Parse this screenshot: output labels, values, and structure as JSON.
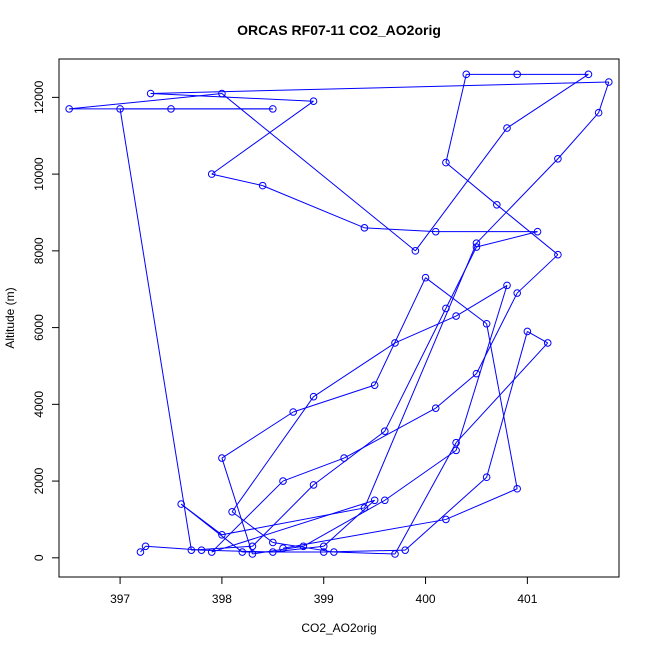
{
  "chart_data": {
    "type": "line",
    "title": "ORCAS RF07-11 CO2_AO2orig",
    "xlabel": "CO2_AO2orig",
    "ylabel": "Altitude (m)",
    "xlim": [
      396.4,
      401.9
    ],
    "ylim": [
      -500,
      13000
    ],
    "x_ticks": [
      "397",
      "398",
      "399",
      "400",
      "401"
    ],
    "y_ticks": [
      "0",
      "2000",
      "4000",
      "6000",
      "8000",
      "10000",
      "12000"
    ],
    "grid": false,
    "legend": "none",
    "series_color": "#0000ff",
    "marker": "open-circle",
    "series": [
      {
        "points": [
          [
            397.2,
            150
          ],
          [
            397.25,
            300
          ],
          [
            397.8,
            200
          ],
          [
            398.5,
            150
          ],
          [
            399.0,
            300
          ],
          [
            399.5,
            1500
          ],
          [
            397.9,
            150
          ],
          [
            398.6,
            2000
          ],
          [
            399.2,
            2600
          ],
          [
            400.1,
            3900
          ],
          [
            400.5,
            4800
          ],
          [
            400.9,
            6900
          ],
          [
            401.3,
            7900
          ],
          [
            400.7,
            9200
          ],
          [
            400.2,
            10300
          ],
          [
            400.4,
            12600
          ],
          [
            400.9,
            12600
          ],
          [
            401.6,
            12600
          ],
          [
            400.8,
            11200
          ],
          [
            399.9,
            8000
          ],
          [
            398.0,
            12100
          ],
          [
            396.5,
            11700
          ],
          [
            397.5,
            11700
          ],
          [
            398.5,
            11700
          ],
          [
            397.0,
            11700
          ],
          [
            397.7,
            200
          ],
          [
            398.3,
            300
          ],
          [
            398.9,
            1900
          ],
          [
            399.6,
            3300
          ],
          [
            400.2,
            6500
          ],
          [
            400.5,
            8100
          ],
          [
            401.1,
            8500
          ],
          [
            400.1,
            8500
          ],
          [
            399.4,
            8600
          ],
          [
            398.4,
            9700
          ],
          [
            397.9,
            10000
          ],
          [
            398.9,
            11900
          ],
          [
            397.3,
            12100
          ],
          [
            401.8,
            12400
          ],
          [
            401.7,
            11600
          ],
          [
            401.3,
            10400
          ],
          [
            400.5,
            8200
          ],
          [
            399.4,
            1300
          ],
          [
            398.0,
            600
          ],
          [
            397.6,
            1400
          ],
          [
            398.2,
            150
          ],
          [
            399.0,
            150
          ],
          [
            399.8,
            200
          ],
          [
            400.6,
            2100
          ],
          [
            401.0,
            5900
          ],
          [
            401.2,
            5600
          ],
          [
            400.3,
            3000
          ],
          [
            399.7,
            100
          ],
          [
            399.1,
            150
          ],
          [
            398.5,
            400
          ],
          [
            398.1,
            1200
          ],
          [
            398.9,
            4200
          ],
          [
            399.7,
            5600
          ],
          [
            400.3,
            6300
          ],
          [
            400.8,
            7100
          ],
          [
            400.3,
            2800
          ],
          [
            399.6,
            1500
          ],
          [
            398.8,
            300
          ],
          [
            398.3,
            100
          ],
          [
            398.0,
            2600
          ],
          [
            398.7,
            3800
          ],
          [
            399.5,
            4500
          ],
          [
            400.0,
            7300
          ],
          [
            400.6,
            6100
          ],
          [
            400.9,
            1800
          ],
          [
            400.2,
            1000
          ],
          [
            398.6,
            250
          ]
        ]
      }
    ]
  }
}
